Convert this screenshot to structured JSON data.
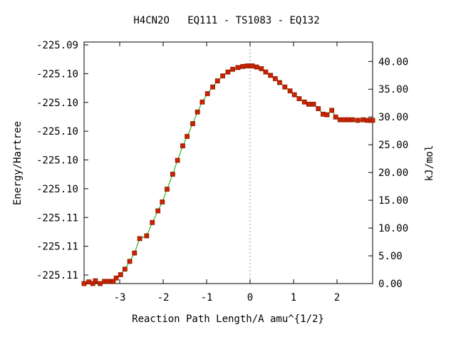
{
  "chart_data": {
    "type": "line",
    "title": "H4CN2O   EQ111 - TS1083 - EQ132",
    "xlabel": "Reaction Path Length/A amu^{1/2}",
    "ylabel_left": "Energy/Hartree",
    "ylabel_right": "kJ/mol",
    "xlim": [
      -3.82,
      2.82
    ],
    "ylim_kj": [
      0,
      43.5
    ],
    "x_ticks": [
      -3,
      -2,
      -1,
      0,
      1,
      2
    ],
    "x_tick_labels": [
      "-3",
      "-2",
      "-1",
      "0",
      "1",
      "2"
    ],
    "y_left_tick_labels": [
      "-225.09",
      "-225.10",
      "-225.10",
      "-225.10",
      "-225.10",
      "-225.10",
      "-225.11",
      "-225.11",
      "-225.11"
    ],
    "y_right_ticks": [
      0,
      5,
      10,
      15,
      20,
      25,
      30,
      35,
      40
    ],
    "y_right_tick_labels": [
      "0.00",
      "5.00",
      "10.00",
      "15.00",
      "20.00",
      "25.00",
      "30.00",
      "35.00",
      "40.00"
    ],
    "ts_marker_x": 0,
    "colors": {
      "line": "#00aa00",
      "marker": "#cc2200",
      "marker_edge": "#8b1a00",
      "ts_line": "#999999"
    },
    "series": [
      {
        "x": [
          -3.82,
          -3.71,
          -3.62,
          -3.56,
          -3.45,
          -3.35,
          -3.26,
          -3.15,
          -3.08,
          -2.98,
          -2.88,
          -2.77,
          -2.66,
          -2.54,
          -2.38,
          -2.25,
          -2.12,
          -2.02,
          -1.91,
          -1.78,
          -1.67,
          -1.55,
          -1.45,
          -1.32,
          -1.21,
          -1.1,
          -0.98,
          -0.86,
          -0.75,
          -0.63,
          -0.51,
          -0.4,
          -0.28,
          -0.17,
          -0.07,
          0.0,
          0.05,
          0.15,
          0.26,
          0.36,
          0.47,
          0.58,
          0.68,
          0.8,
          0.92,
          1.02,
          1.13,
          1.25,
          1.35,
          1.46,
          1.57,
          1.68,
          1.77,
          1.88,
          1.97,
          2.07,
          2.16,
          2.26,
          2.36,
          2.48,
          2.6,
          2.7,
          2.78,
          2.82
        ],
        "y": [
          0.0,
          0.3,
          0.0,
          0.5,
          0.0,
          0.4,
          0.4,
          0.4,
          1.0,
          1.6,
          2.6,
          4.0,
          5.5,
          8.1,
          8.6,
          11.0,
          13.1,
          14.7,
          17.0,
          19.7,
          22.2,
          24.8,
          26.5,
          28.8,
          30.9,
          32.7,
          34.2,
          35.4,
          36.5,
          37.4,
          38.1,
          38.6,
          38.9,
          39.1,
          39.2,
          39.2,
          39.2,
          39.0,
          38.7,
          38.1,
          37.5,
          36.9,
          36.2,
          35.4,
          34.7,
          34.0,
          33.3,
          32.7,
          32.3,
          32.3,
          31.5,
          30.5,
          30.4,
          31.2,
          30.0,
          29.5,
          29.5,
          29.5,
          29.5,
          29.4,
          29.5,
          29.4,
          29.4,
          29.4
        ]
      }
    ]
  }
}
